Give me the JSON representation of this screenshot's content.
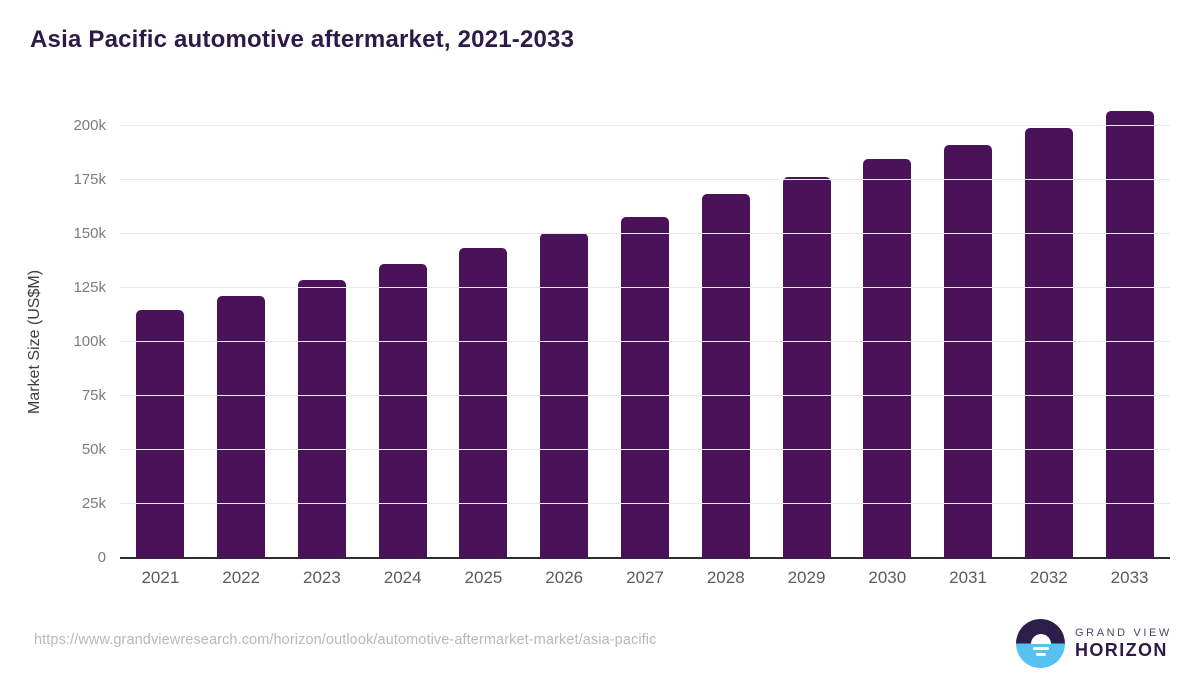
{
  "chart_data": {
    "type": "bar",
    "title": "Asia Pacific automotive aftermarket, 2021-2033",
    "xlabel": "",
    "ylabel": "Market Size (US$M)",
    "categories": [
      "2021",
      "2022",
      "2023",
      "2024",
      "2025",
      "2026",
      "2027",
      "2028",
      "2029",
      "2030",
      "2031",
      "2032",
      "2033"
    ],
    "values": [
      114800,
      121300,
      128700,
      136200,
      143400,
      150600,
      158000,
      168400,
      176500,
      184600,
      191200,
      198900,
      207100
    ],
    "unit": "US$M",
    "ylim": [
      0,
      215000
    ],
    "yticks": [
      0,
      25000,
      50000,
      75000,
      100000,
      125000,
      150000,
      175000,
      200000
    ],
    "ytick_labels": [
      "0",
      "25k",
      "50k",
      "75k",
      "100k",
      "125k",
      "150k",
      "175k",
      "200k"
    ],
    "grid": true,
    "legend": false,
    "bar_color": "#4a1259"
  },
  "footer": {
    "source_url": "https://www.grandviewresearch.com/horizon/outlook/automotive-aftermarket-market/asia-pacific",
    "logo": {
      "line1": "GRAND VIEW",
      "line2": "HORIZON"
    }
  },
  "colors": {
    "title": "#2e1a47",
    "bar": "#4a1259",
    "axis_line": "#2d2d2d",
    "gridline": "#e9e9e9",
    "ytick_label": "#7c7c7c",
    "xtick_label": "#5c5c5c",
    "url_text": "#b8b8b8",
    "logo_purple": "#2e1c49",
    "logo_blue": "#57c2f0"
  }
}
